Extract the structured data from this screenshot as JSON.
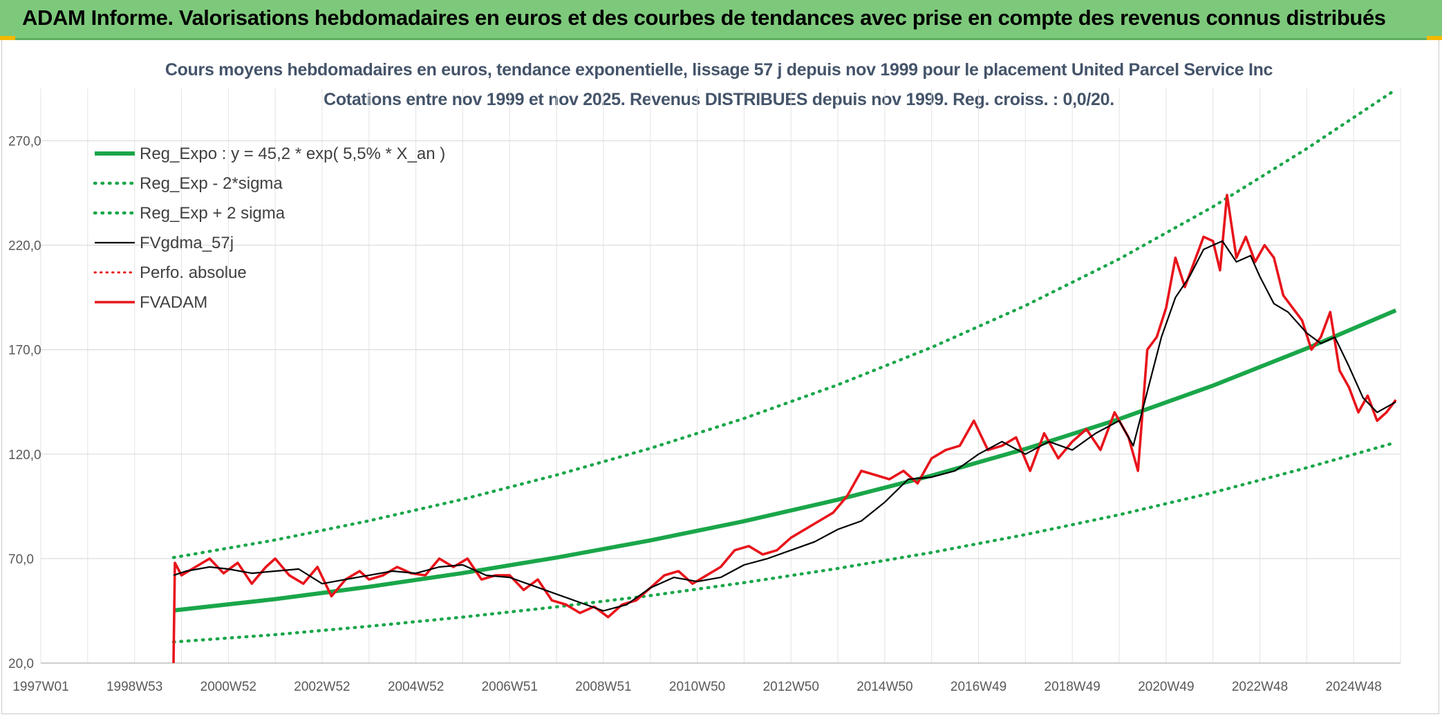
{
  "banner": {
    "title": "ADAM Informe. Valorisations hebdomadaires en euros et des courbes de tendances avec prise en compte des revenus connus distribués"
  },
  "colors": {
    "banner_bg": "#7dc97b",
    "trend_green": "#1aa64a",
    "price_red": "#e8141b",
    "smooth_black": "#000000",
    "title_text": "#44546a"
  },
  "chart_data": {
    "type": "line",
    "title": "Cours moyens hebdomadaires en euros, tendance exponentielle, lissage 57 j depuis nov 1999 pour le placement United Parcel Service Inc",
    "subtitle": "Cotations entre nov 1999 et nov 2025. Revenus DISTRIBUES depuis nov 1999. Reg. croiss. : 0,0/20.",
    "xlabel": "",
    "ylabel": "",
    "x_tick_labels": [
      "1997W01",
      "1998W53",
      "2000W52",
      "2002W52",
      "2004W52",
      "2006W51",
      "2008W51",
      "2010W50",
      "2012W50",
      "2014W50",
      "2016W49",
      "2018W49",
      "2020W49",
      "2022W48",
      "2024W48"
    ],
    "x_range": [
      1997.0,
      2026.0
    ],
    "y_tick_labels": [
      "20,0",
      "70,0",
      "120,0",
      "170,0",
      "220,0",
      "270,0"
    ],
    "ylim": [
      20,
      295
    ],
    "grid": true,
    "legend_position": "top-left",
    "regression": {
      "a": 45.2,
      "rate": 0.055,
      "x0": 1999.83,
      "sigma_factor_low": 0.665,
      "sigma_factor_high": 1.56
    },
    "series": [
      {
        "name": "Reg_Expo : y = 45,2 * exp( 5,5% *  X_an )",
        "style": "solid-green-thick",
        "x": [
          1999.83,
          2002.0,
          2004.0,
          2006.0,
          2008.0,
          2010.0,
          2012.0,
          2014.0,
          2016.0,
          2018.0,
          2020.0,
          2022.0,
          2024.0,
          2025.9
        ],
        "values": [
          45.2,
          50.6,
          56.5,
          63.1,
          70.5,
          78.7,
          87.9,
          98.2,
          109.7,
          122.5,
          136.8,
          152.8,
          170.6,
          188.8
        ]
      },
      {
        "name": "Reg_Exp - 2*sigma",
        "style": "dotted-green",
        "x": [
          1999.83,
          2002.0,
          2004.0,
          2006.0,
          2008.0,
          2010.0,
          2012.0,
          2014.0,
          2016.0,
          2018.0,
          2020.0,
          2022.0,
          2024.0,
          2025.9
        ],
        "values": [
          30.1,
          33.6,
          37.6,
          42.0,
          46.9,
          52.3,
          58.5,
          65.3,
          72.9,
          81.5,
          91.0,
          101.6,
          113.5,
          125.6
        ]
      },
      {
        "name": "Reg_Exp + 2 sigma",
        "style": "dotted-green",
        "x": [
          1999.83,
          2002.0,
          2004.0,
          2006.0,
          2008.0,
          2010.0,
          2012.0,
          2014.0,
          2016.0,
          2018.0,
          2020.0,
          2022.0,
          2024.0,
          2025.9
        ],
        "values": [
          70.5,
          78.9,
          88.1,
          98.4,
          110.0,
          122.8,
          137.1,
          153.2,
          171.1,
          191.1,
          213.4,
          238.4,
          266.2,
          294.5
        ]
      },
      {
        "name": "FVgdma_57j",
        "style": "solid-black",
        "x": [
          1999.83,
          2000.1,
          2000.6,
          2001.0,
          2001.5,
          2002.0,
          2002.5,
          2003.0,
          2003.5,
          2004.0,
          2004.5,
          2005.0,
          2005.5,
          2006.0,
          2006.5,
          2007.0,
          2007.5,
          2008.0,
          2008.5,
          2009.0,
          2009.5,
          2010.0,
          2010.5,
          2011.0,
          2011.5,
          2012.0,
          2012.5,
          2013.0,
          2013.5,
          2014.0,
          2014.5,
          2015.0,
          2015.5,
          2016.0,
          2016.5,
          2017.0,
          2017.5,
          2018.0,
          2018.5,
          2019.0,
          2019.5,
          2020.0,
          2020.3,
          2020.6,
          2020.9,
          2021.2,
          2021.5,
          2021.8,
          2022.0,
          2022.2,
          2022.5,
          2022.8,
          2023.0,
          2023.3,
          2023.6,
          2024.0,
          2024.3,
          2024.6,
          2024.9,
          2025.2,
          2025.5,
          2025.9
        ],
        "values": [
          62,
          64,
          66,
          65,
          63,
          64,
          65,
          58,
          60,
          62,
          64,
          63,
          66,
          67,
          62,
          61,
          57,
          53,
          49,
          45,
          48,
          56,
          61,
          59,
          61,
          67,
          70,
          74,
          78,
          84,
          88,
          97,
          108,
          109,
          112,
          120,
          126,
          120,
          126,
          122,
          130,
          136,
          124,
          150,
          176,
          195,
          205,
          218,
          220,
          222,
          212,
          215,
          205,
          192,
          188,
          178,
          173,
          176,
          162,
          147,
          140,
          145
        ]
      },
      {
        "name": "Perfo. absolue",
        "style": "dotted-red",
        "x": [],
        "values": []
      },
      {
        "name": "FVADAM",
        "style": "solid-red-thick",
        "x": [
          1999.83,
          1999.86,
          2000.0,
          2000.3,
          2000.6,
          2000.9,
          2001.2,
          2001.5,
          2001.8,
          2002.0,
          2002.3,
          2002.6,
          2002.9,
          2003.2,
          2003.5,
          2003.8,
          2004.0,
          2004.3,
          2004.6,
          2004.9,
          2005.2,
          2005.5,
          2005.8,
          2006.1,
          2006.4,
          2006.7,
          2007.0,
          2007.3,
          2007.6,
          2007.9,
          2008.2,
          2008.5,
          2008.8,
          2009.1,
          2009.4,
          2009.7,
          2010.0,
          2010.3,
          2010.6,
          2010.9,
          2011.2,
          2011.5,
          2011.8,
          2012.1,
          2012.4,
          2012.7,
          2013.0,
          2013.3,
          2013.6,
          2013.9,
          2014.2,
          2014.5,
          2014.8,
          2015.1,
          2015.4,
          2015.7,
          2016.0,
          2016.3,
          2016.6,
          2016.9,
          2017.2,
          2017.5,
          2017.8,
          2018.1,
          2018.4,
          2018.7,
          2019.0,
          2019.3,
          2019.6,
          2019.9,
          2020.2,
          2020.4,
          2020.6,
          2020.8,
          2021.0,
          2021.2,
          2021.4,
          2021.6,
          2021.8,
          2022.0,
          2022.15,
          2022.3,
          2022.5,
          2022.7,
          2022.9,
          2023.1,
          2023.3,
          2023.5,
          2023.7,
          2023.9,
          2024.1,
          2024.3,
          2024.5,
          2024.7,
          2024.9,
          2025.1,
          2025.3,
          2025.5,
          2025.7,
          2025.9
        ],
        "values": [
          20,
          68,
          62,
          66,
          70,
          63,
          68,
          58,
          66,
          70,
          62,
          58,
          66,
          52,
          60,
          64,
          60,
          62,
          66,
          63,
          62,
          70,
          66,
          70,
          60,
          62,
          62,
          55,
          60,
          50,
          48,
          44,
          47,
          42,
          48,
          50,
          56,
          62,
          64,
          58,
          62,
          66,
          74,
          76,
          72,
          74,
          80,
          84,
          88,
          92,
          100,
          112,
          110,
          108,
          112,
          106,
          118,
          122,
          124,
          136,
          122,
          124,
          128,
          112,
          130,
          118,
          126,
          132,
          122,
          140,
          128,
          112,
          170,
          176,
          190,
          214,
          200,
          212,
          224,
          222,
          208,
          244,
          214,
          224,
          212,
          220,
          214,
          196,
          190,
          184,
          170,
          176,
          188,
          160,
          152,
          140,
          148,
          136,
          140,
          146
        ]
      }
    ]
  }
}
